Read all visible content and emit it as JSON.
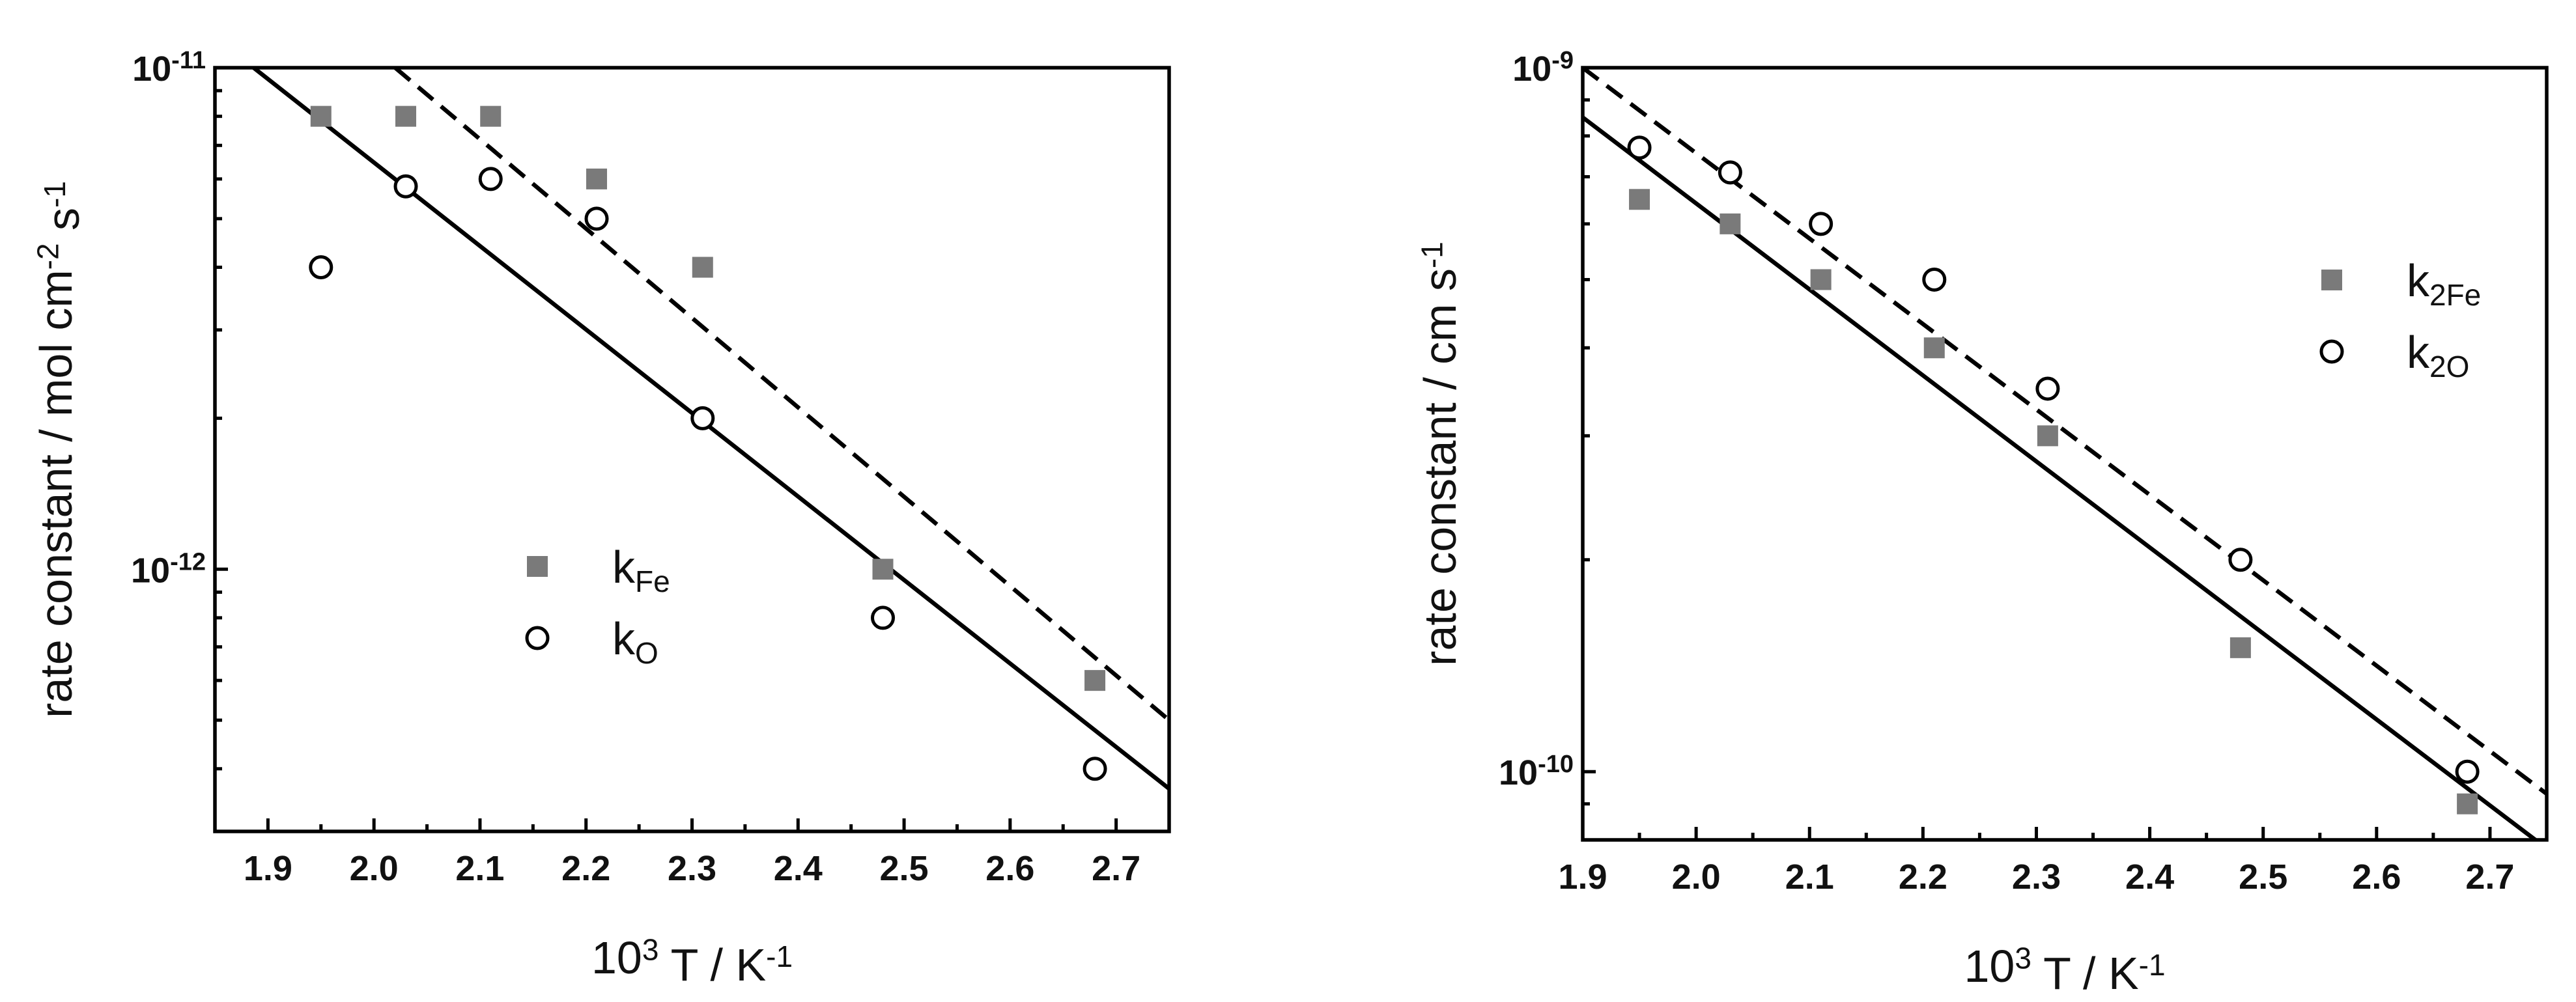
{
  "chart_data": [
    {
      "type": "scatter",
      "xlabel": "10³ T / K⁻¹",
      "ylabel": "rate constant / mol cm⁻² s⁻¹",
      "xlim": [
        1.85,
        2.75
      ],
      "ylim": [
        3e-13,
        1e-11
      ],
      "yscale": "log",
      "x_ticks": [
        1.9,
        2.0,
        2.1,
        2.2,
        2.3,
        2.4,
        2.5,
        2.6,
        2.7
      ],
      "y_ticks": [
        {
          "value": 1e-11,
          "base": "10",
          "exp": "-11"
        },
        {
          "value": 1e-12,
          "base": "10",
          "exp": "-12"
        }
      ],
      "legend_position": "lower-center",
      "series": [
        {
          "name_base": "k",
          "name_sub": "Fe",
          "marker": "filled-square",
          "color": "#7a7a7a",
          "x": [
            1.95,
            2.03,
            2.11,
            2.21,
            2.31,
            2.48,
            2.68
          ],
          "y": [
            8e-12,
            8e-12,
            8e-12,
            6e-12,
            4e-12,
            1e-12,
            6e-13
          ]
        },
        {
          "name_base": "k",
          "name_sub": "O",
          "marker": "open-circle",
          "color": "#000000",
          "x": [
            1.95,
            2.03,
            2.11,
            2.21,
            2.31,
            2.48,
            2.68
          ],
          "y": [
            4e-12,
            5.8e-12,
            6e-12,
            5e-12,
            2e-12,
            8e-13,
            4e-13
          ]
        }
      ],
      "fit_lines": [
        {
          "style": "solid",
          "x": [
            1.85,
            2.75
          ],
          "y": [
            1.15e-11,
            3.65e-13
          ]
        },
        {
          "style": "dashed",
          "x": [
            2.02,
            2.75
          ],
          "y": [
            1e-11,
            5e-13
          ]
        }
      ]
    },
    {
      "type": "scatter",
      "xlabel": "10³ T / K⁻¹",
      "ylabel": "rate constant / cm s⁻¹",
      "xlim": [
        1.9,
        2.75
      ],
      "ylim": [
        8e-11,
        1e-09
      ],
      "yscale": "log",
      "x_ticks": [
        1.9,
        2.0,
        2.1,
        2.2,
        2.3,
        2.4,
        2.5,
        2.6,
        2.7
      ],
      "y_ticks": [
        {
          "value": 1e-09,
          "base": "10",
          "exp": "-9"
        },
        {
          "value": 1e-10,
          "base": "10",
          "exp": "-10"
        }
      ],
      "legend_position": "upper-right",
      "series": [
        {
          "name_base": "k",
          "name_sub": "2Fe",
          "marker": "filled-square",
          "color": "#7a7a7a",
          "x": [
            1.95,
            2.03,
            2.11,
            2.21,
            2.31,
            2.48,
            2.68
          ],
          "y": [
            6.5e-10,
            6e-10,
            5e-10,
            4e-10,
            3e-10,
            1.5e-10,
            9e-11
          ]
        },
        {
          "name_base": "k",
          "name_sub": "2O",
          "marker": "open-circle",
          "color": "#000000",
          "x": [
            1.95,
            2.03,
            2.11,
            2.21,
            2.31,
            2.48,
            2.68
          ],
          "y": [
            7.7e-10,
            7.1e-10,
            6e-10,
            5e-10,
            3.5e-10,
            2e-10,
            1e-10
          ]
        }
      ],
      "fit_lines": [
        {
          "style": "solid",
          "x": [
            1.9,
            2.74
          ],
          "y": [
            8.5e-10,
            8e-11
          ]
        },
        {
          "style": "dashed",
          "x": [
            1.9,
            2.75
          ],
          "y": [
            1e-09,
            9.3e-11
          ]
        }
      ]
    }
  ]
}
